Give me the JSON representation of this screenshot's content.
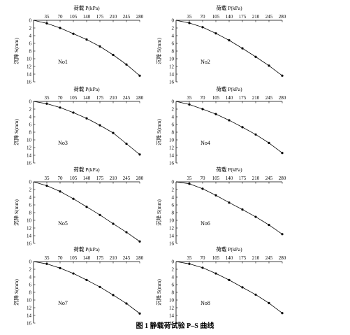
{
  "figure": {
    "caption": "图 1  静载荷试验 P–S 曲线"
  },
  "chart_data": [
    {
      "type": "line",
      "panel_label": "No1",
      "xlabel": "荷载 P(kPa)",
      "ylabel": "沉降 S(mm)",
      "x_ticks": [
        35,
        70,
        105,
        140,
        175,
        210,
        245,
        280
      ],
      "y_ticks": [
        0,
        2,
        4,
        6,
        8,
        10,
        12,
        14,
        16
      ],
      "xlim": [
        0,
        280
      ],
      "ylim": [
        0,
        16
      ],
      "y_inverted": true,
      "x_axis_position": "top",
      "x": [
        0,
        35,
        70,
        105,
        140,
        175,
        210,
        245,
        280
      ],
      "y": [
        0,
        0.8,
        2.0,
        3.5,
        5.0,
        6.8,
        9.0,
        11.5,
        14.4
      ]
    },
    {
      "type": "line",
      "panel_label": "No2",
      "xlabel": "荷载 P(kPa)",
      "ylabel": "沉降 S(mm)",
      "x_ticks": [
        35,
        70,
        105,
        140,
        175,
        210,
        245,
        280
      ],
      "y_ticks": [
        0,
        2,
        4,
        6,
        8,
        10,
        12,
        14,
        16
      ],
      "xlim": [
        0,
        280
      ],
      "ylim": [
        0,
        16
      ],
      "y_inverted": true,
      "x_axis_position": "top",
      "x": [
        0,
        35,
        70,
        105,
        140,
        175,
        210,
        245,
        280
      ],
      "y": [
        0,
        0.7,
        1.8,
        3.4,
        5.2,
        7.3,
        9.5,
        11.8,
        14.4
      ]
    },
    {
      "type": "line",
      "panel_label": "No3",
      "xlabel": "荷载 P(kPa)",
      "ylabel": "沉降 S(mm)",
      "x_ticks": [
        35,
        70,
        105,
        140,
        175,
        210,
        245,
        280
      ],
      "y_ticks": [
        0,
        2,
        4,
        6,
        8,
        10,
        12,
        14,
        16
      ],
      "xlim": [
        0,
        280
      ],
      "ylim": [
        0,
        16
      ],
      "y_inverted": true,
      "x_axis_position": "top",
      "x": [
        0,
        35,
        70,
        105,
        140,
        175,
        210,
        245,
        280
      ],
      "y": [
        0,
        0.6,
        1.6,
        2.9,
        4.4,
        6.2,
        8.2,
        11.0,
        13.8
      ]
    },
    {
      "type": "line",
      "panel_label": "No4",
      "xlabel": "荷载 P(kPa)",
      "ylabel": "沉降 S(mm)",
      "x_ticks": [
        35,
        70,
        105,
        140,
        175,
        210,
        245,
        280
      ],
      "y_ticks": [
        0,
        2,
        4,
        6,
        8,
        10,
        12,
        14,
        16
      ],
      "xlim": [
        0,
        280
      ],
      "ylim": [
        0,
        16
      ],
      "y_inverted": true,
      "x_axis_position": "top",
      "x": [
        0,
        35,
        70,
        105,
        140,
        175,
        210,
        245,
        280
      ],
      "y": [
        0,
        0.8,
        2.0,
        3.3,
        4.9,
        6.7,
        8.6,
        10.8,
        13.4
      ]
    },
    {
      "type": "line",
      "panel_label": "No5",
      "xlabel": "荷载 P(kPa)",
      "ylabel": "沉降 S(mm)",
      "x_ticks": [
        35,
        70,
        105,
        140,
        175,
        210,
        245,
        280
      ],
      "y_ticks": [
        0,
        2,
        4,
        6,
        8,
        10,
        12,
        14,
        16
      ],
      "xlim": [
        0,
        280
      ],
      "ylim": [
        0,
        16
      ],
      "y_inverted": true,
      "x_axis_position": "top",
      "x": [
        0,
        35,
        70,
        105,
        140,
        175,
        210,
        245,
        280
      ],
      "y": [
        0,
        1.0,
        2.5,
        4.4,
        6.5,
        8.6,
        10.9,
        13.1,
        15.5
      ]
    },
    {
      "type": "line",
      "panel_label": "No6",
      "xlabel": "荷载 P(kPa)",
      "ylabel": "沉降 S(mm)",
      "x_ticks": [
        35,
        70,
        105,
        140,
        175,
        210,
        245,
        280
      ],
      "y_ticks": [
        0,
        2,
        4,
        6,
        8,
        10,
        12,
        14,
        16
      ],
      "xlim": [
        0,
        280
      ],
      "ylim": [
        0,
        16
      ],
      "y_inverted": true,
      "x_axis_position": "top",
      "x": [
        0,
        35,
        70,
        105,
        140,
        175,
        210,
        245,
        280
      ],
      "y": [
        0,
        0.5,
        1.8,
        3.5,
        5.4,
        7.2,
        9.1,
        11.2,
        13.6
      ]
    },
    {
      "type": "line",
      "panel_label": "No7",
      "xlabel": "荷载 P(kPa)",
      "ylabel": "沉降 S(mm)",
      "x_ticks": [
        35,
        70,
        105,
        140,
        175,
        210,
        245,
        280
      ],
      "y_ticks": [
        0,
        2,
        4,
        6,
        8,
        10,
        12,
        14,
        16
      ],
      "xlim": [
        0,
        280
      ],
      "ylim": [
        0,
        16
      ],
      "y_inverted": true,
      "x_axis_position": "top",
      "x": [
        0,
        35,
        70,
        105,
        140,
        175,
        210,
        245,
        280
      ],
      "y": [
        0,
        0.6,
        1.7,
        3.1,
        4.8,
        6.6,
        8.7,
        10.9,
        13.5
      ]
    },
    {
      "type": "line",
      "panel_label": "No8",
      "xlabel": "荷载 P(kPa)",
      "ylabel": "沉降 S(mm)",
      "x_ticks": [
        35,
        70,
        105,
        140,
        175,
        210,
        245,
        280
      ],
      "y_ticks": [
        0,
        2,
        4,
        6,
        8,
        10,
        12,
        14,
        16
      ],
      "xlim": [
        0,
        280
      ],
      "ylim": [
        0,
        16
      ],
      "y_inverted": true,
      "x_axis_position": "top",
      "x": [
        0,
        35,
        70,
        105,
        140,
        175,
        210,
        245,
        280
      ],
      "y": [
        0,
        0.6,
        1.6,
        3.1,
        4.8,
        6.7,
        8.6,
        10.8,
        13.4
      ]
    }
  ]
}
